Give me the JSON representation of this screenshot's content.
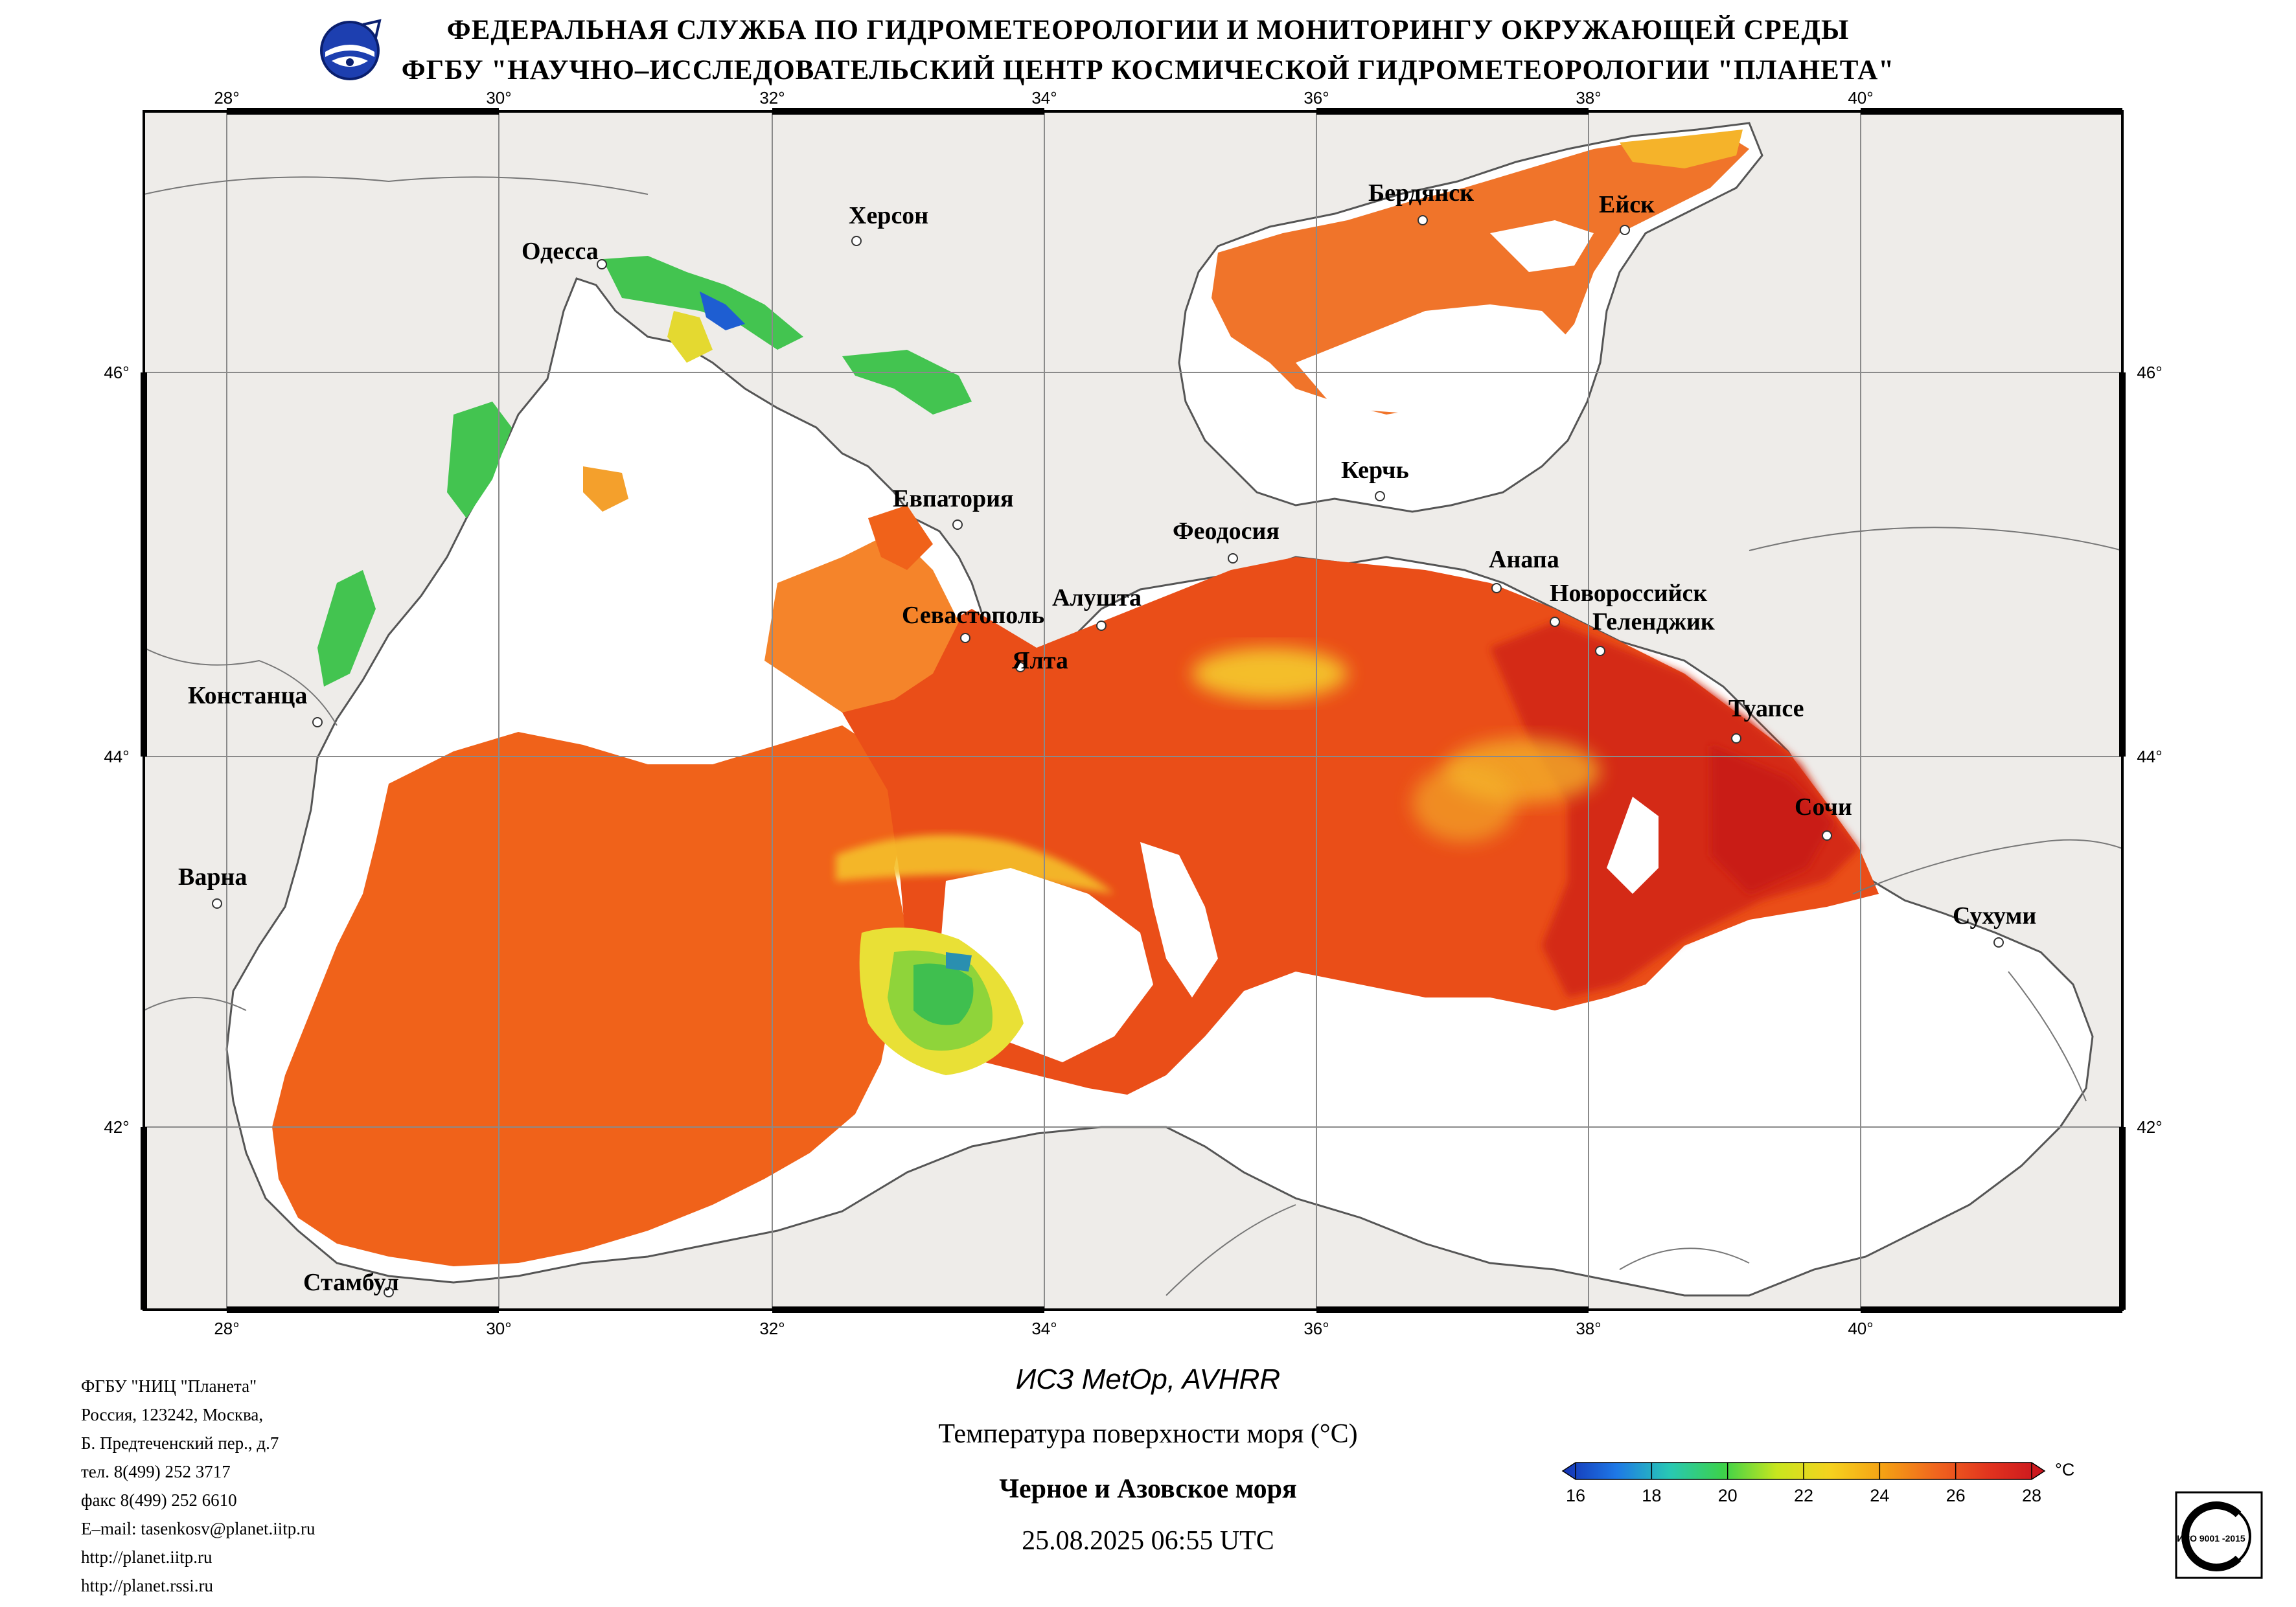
{
  "header": {
    "line1": "ФЕДЕРАЛЬНАЯ СЛУЖБА ПО ГИДРОМЕТЕОРОЛОГИИ И МОНИТОРИНГУ ОКРУЖАЮЩЕЙ СРЕДЫ",
    "line2": "ФГБУ \"НАУЧНО–ИССЛЕДОВАТЕЛЬСКИЙ ЦЕНТР КОСМИЧЕСКОЙ ГИДРОМЕТЕОРОЛОГИИ \"ПЛАНЕТА\""
  },
  "map": {
    "lon_labels": [
      "28°",
      "30°",
      "32°",
      "34°",
      "36°",
      "38°",
      "40°"
    ],
    "lat_labels": [
      "46°",
      "44°",
      "42°"
    ],
    "cities": {
      "kherson": "Херсон",
      "odessa": "Одесса",
      "berdyansk": "Бердянск",
      "yeysk": "Ейск",
      "kerch": "Керчь",
      "yevpatoria": "Евпатория",
      "feodosia": "Феодосия",
      "anapa": "Анапа",
      "novorossiysk": "Новороссийск",
      "gelendzhik": "Геленджик",
      "sevastopol": "Севастополь",
      "alushta": "Алушта",
      "yalta": "Ялта",
      "constanta": "Констанца",
      "tuapse": "Туапсе",
      "sochi": "Сочи",
      "varna": "Варна",
      "sukhumi": "Сухуми",
      "istanbul": "Стамбул"
    },
    "colors": {
      "land": "#eeece9",
      "no_data": "#ffffff",
      "sst_dominant": "#f0621a",
      "sst_warm": "#d9280f",
      "sst_cool": "#f4d02a",
      "sst_cold": "#3fbf4f",
      "coast": "#555555"
    }
  },
  "caption": {
    "satellite": "ИСЗ MetOp, AVHRR",
    "parameter": "Температура поверхности моря (°С)",
    "region": "Черное и Азовское моря",
    "datetime": "25.08.2025 06:55 UTC"
  },
  "colorbar": {
    "unit": "°С",
    "ticks": [
      "16",
      "18",
      "20",
      "22",
      "24",
      "26",
      "28"
    ],
    "colors": [
      "#1432b4",
      "#1e78e6",
      "#28c8b4",
      "#3cd24a",
      "#c8e61e",
      "#f5d21e",
      "#f5a014",
      "#f0641e",
      "#e1321e",
      "#c8141e"
    ]
  },
  "contact": {
    "org": "ФГБУ \"НИЦ \"Планета\"",
    "address1": "Россия, 123242, Москва,",
    "address2": "Б. Предтеченский пер., д.7",
    "phone": "тел. 8(499) 252 3717",
    "fax": "факс 8(499) 252 6610",
    "email": "E–mail: tasenkosv@planet.iitp.ru",
    "url1": "http://planet.iitp.ru",
    "url2": "http://planet.rssi.ru"
  },
  "iso_badge": {
    "label": "ИСО 9001 -2015"
  }
}
